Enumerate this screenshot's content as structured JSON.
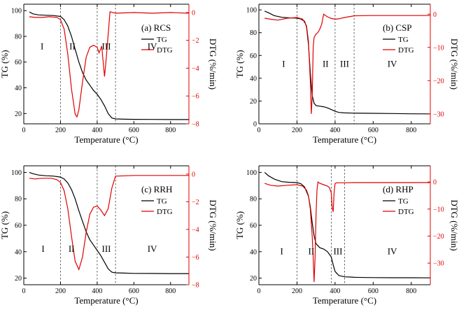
{
  "chart_data": [
    {
      "type": "line",
      "panel_label": "(a) RCS",
      "xlabel": "Temperature (°C)",
      "ylabel_left": "TG (%)",
      "ylabel_right": "DTG (%/min)",
      "xlim": [
        0,
        900
      ],
      "ylim_left": [
        12,
        105
      ],
      "ylim_right": [
        -8,
        0.6
      ],
      "xticks": [
        0,
        200,
        400,
        600,
        800
      ],
      "yticks_left": [
        20,
        40,
        60,
        80,
        100
      ],
      "yticks_right": [
        0,
        -2,
        -4,
        -6,
        -8
      ],
      "stage_lines": [
        200,
        400,
        500
      ],
      "stages": [
        {
          "label": "I",
          "x": 100
        },
        {
          "label": "II",
          "x": 265
        },
        {
          "label": "III",
          "x": 450
        },
        {
          "label": "IV",
          "x": 700
        }
      ],
      "legend_position": "right-middle",
      "stage_label_level": 70,
      "series": [
        {
          "name": "TG",
          "axis": "left",
          "color": "#000000",
          "x": [
            30,
            50,
            80,
            120,
            160,
            200,
            220,
            240,
            260,
            280,
            300,
            320,
            340,
            360,
            380,
            400,
            420,
            440,
            460,
            480,
            500,
            550,
            600,
            700,
            800,
            900
          ],
          "y": [
            99,
            97.5,
            96.7,
            96.4,
            96.2,
            95.5,
            93,
            88,
            80,
            70,
            60,
            52,
            46,
            42,
            38,
            35,
            31,
            26,
            20,
            16.5,
            15.8,
            15.6,
            15.5,
            15.4,
            15.3,
            15.3
          ]
        },
        {
          "name": "DTG",
          "axis": "right",
          "color": "#e00000",
          "x": [
            30,
            60,
            100,
            140,
            180,
            200,
            220,
            240,
            260,
            280,
            290,
            300,
            320,
            340,
            360,
            380,
            400,
            410,
            420,
            425,
            430,
            440,
            450,
            470,
            500,
            600,
            700,
            800,
            900
          ],
          "y": [
            -0.3,
            -0.35,
            -0.35,
            -0.3,
            -0.35,
            -0.5,
            -1.2,
            -3,
            -5.5,
            -7.3,
            -7.5,
            -7.0,
            -5,
            -3.2,
            -2.5,
            -2.35,
            -2.5,
            -2.9,
            -2.6,
            -2.4,
            -3.2,
            -4.6,
            -3.2,
            0.05,
            -0.05,
            0.0,
            -0.05,
            0.0,
            -0.05
          ]
        }
      ]
    },
    {
      "type": "line",
      "panel_label": "(b) CSP",
      "xlabel": "Temperature (°C)",
      "ylabel_left": "TG (%)",
      "ylabel_right": "DTG (%/min)",
      "xlim": [
        0,
        900
      ],
      "ylim_left": [
        0,
        105
      ],
      "ylim_right": [
        -33,
        3
      ],
      "xticks": [
        0,
        200,
        400,
        600,
        800
      ],
      "yticks_left": [
        0,
        20,
        40,
        60,
        80,
        100
      ],
      "yticks_right": [
        0,
        -10,
        -20,
        -30
      ],
      "stage_lines": [
        200,
        400,
        500
      ],
      "stages": [
        {
          "label": "I",
          "x": 130
        },
        {
          "label": "II",
          "x": 350
        },
        {
          "label": "III",
          "x": 450
        },
        {
          "label": "IV",
          "x": 700
        }
      ],
      "legend_position": "right-middle",
      "stage_label_level": 50,
      "series": [
        {
          "name": "TG",
          "axis": "left",
          "color": "#000000",
          "x": [
            30,
            50,
            80,
            120,
            160,
            200,
            220,
            240,
            250,
            260,
            270,
            280,
            290,
            300,
            320,
            340,
            360,
            380,
            400,
            420,
            450,
            500,
            600,
            700,
            800,
            900
          ],
          "y": [
            99,
            97.5,
            95,
            93.5,
            93,
            92.8,
            92,
            90,
            85,
            70,
            45,
            25,
            18,
            16,
            15.5,
            15,
            14,
            12.5,
            11,
            10,
            9.6,
            9.4,
            9.2,
            9.0,
            8.8,
            8.7
          ]
        },
        {
          "name": "DTG",
          "axis": "right",
          "color": "#e00000",
          "x": [
            30,
            60,
            100,
            150,
            200,
            230,
            250,
            260,
            270,
            275,
            280,
            285,
            290,
            300,
            310,
            320,
            330,
            340,
            350,
            360,
            380,
            400,
            420,
            450,
            500,
            600,
            700,
            800,
            900
          ],
          "y": [
            -1.2,
            -1.5,
            -1.8,
            -1.2,
            -1.0,
            -1.5,
            -3.5,
            -8,
            -20,
            -30,
            -25,
            -10,
            -7,
            -6,
            -5.5,
            -4.5,
            -3,
            0,
            -0.4,
            -0.8,
            -1.3,
            -1.5,
            -1.4,
            -1.0,
            -0.5,
            -0.4,
            -0.4,
            -0.4,
            -0.4
          ]
        }
      ]
    },
    {
      "type": "line",
      "panel_label": "(c) RRH",
      "xlabel": "Temperature (°C)",
      "ylabel_left": "TG (%)",
      "ylabel_right": "DTG (%/min)",
      "xlim": [
        0,
        900
      ],
      "ylim_left": [
        15,
        105
      ],
      "ylim_right": [
        -8,
        0.6
      ],
      "xticks": [
        0,
        200,
        400,
        600,
        800
      ],
      "yticks_left": [
        20,
        40,
        60,
        80,
        100
      ],
      "yticks_right": [
        0,
        -2,
        -4,
        -6,
        -8
      ],
      "stage_lines": [
        200,
        400,
        500
      ],
      "stages": [
        {
          "label": "I",
          "x": 105
        },
        {
          "label": "II",
          "x": 260
        },
        {
          "label": "III",
          "x": 450
        },
        {
          "label": "IV",
          "x": 700
        }
      ],
      "legend_position": "right-middle",
      "stage_label_level": 40,
      "series": [
        {
          "name": "TG",
          "axis": "left",
          "color": "#000000",
          "x": [
            30,
            50,
            80,
            120,
            160,
            200,
            220,
            240,
            260,
            280,
            300,
            320,
            340,
            360,
            380,
            400,
            420,
            440,
            460,
            480,
            500,
            550,
            600,
            700,
            800,
            900
          ],
          "y": [
            100,
            99,
            98,
            97.5,
            97.2,
            96.5,
            95,
            92,
            87,
            80,
            71,
            63,
            55,
            49,
            45,
            41,
            37,
            32,
            27,
            24.5,
            24,
            23.8,
            23.6,
            23.5,
            23.4,
            23.4
          ]
        },
        {
          "name": "DTG",
          "axis": "right",
          "color": "#e00000",
          "x": [
            30,
            60,
            100,
            150,
            180,
            200,
            220,
            240,
            260,
            280,
            300,
            320,
            340,
            360,
            380,
            400,
            420,
            440,
            460,
            480,
            500,
            600,
            700,
            800,
            900
          ],
          "y": [
            -0.3,
            -0.35,
            -0.3,
            -0.3,
            -0.4,
            -0.6,
            -1.2,
            -2.5,
            -4.5,
            -6.3,
            -6.9,
            -6.0,
            -4.2,
            -2.9,
            -2.4,
            -2.3,
            -2.6,
            -3.0,
            -2.5,
            -1.0,
            -0.15,
            -0.1,
            -0.1,
            -0.1,
            -0.1
          ]
        }
      ]
    },
    {
      "type": "line",
      "panel_label": "(d) RHP",
      "xlabel": "Temperature (°C)",
      "ylabel_left": "TG (%)",
      "ylabel_right": "DTG (%/min)",
      "xlim": [
        0,
        900
      ],
      "ylim_left": [
        15,
        105
      ],
      "ylim_right": [
        -38,
        6
      ],
      "xticks": [
        0,
        200,
        400,
        600,
        800
      ],
      "yticks_left": [
        20,
        40,
        60,
        80,
        100
      ],
      "yticks_right": [
        0,
        -10,
        -20,
        -30
      ],
      "stage_lines": [
        200,
        380,
        450
      ],
      "stages": [
        {
          "label": "I",
          "x": 120
        },
        {
          "label": "II",
          "x": 275
        },
        {
          "label": "III",
          "x": 415
        },
        {
          "label": "IV",
          "x": 700
        }
      ],
      "legend_position": "right-middle",
      "stage_label_level": 38,
      "series": [
        {
          "name": "TG",
          "axis": "left",
          "color": "#000000",
          "x": [
            30,
            50,
            80,
            120,
            160,
            200,
            220,
            240,
            260,
            270,
            280,
            290,
            300,
            320,
            340,
            360,
            380,
            390,
            400,
            420,
            450,
            480,
            500,
            600,
            700,
            800,
            900
          ],
          "y": [
            100,
            97.5,
            95,
            93,
            92.5,
            92.3,
            91.5,
            89,
            82,
            74,
            62,
            52,
            46,
            43,
            42,
            40,
            36,
            30,
            25,
            22,
            21,
            20.8,
            20.6,
            20.4,
            20.3,
            20.3,
            20.2
          ]
        },
        {
          "name": "DTG",
          "axis": "right",
          "color": "#e00000",
          "x": [
            30,
            60,
            100,
            150,
            200,
            230,
            250,
            260,
            270,
            280,
            285,
            290,
            295,
            300,
            305,
            310,
            320,
            340,
            360,
            370,
            380,
            385,
            390,
            395,
            400,
            410,
            450,
            500,
            600,
            700,
            800,
            900
          ],
          "y": [
            -0.5,
            -1.2,
            -1.5,
            -1.2,
            -1.0,
            -1.5,
            -3,
            -5,
            -10,
            -20,
            -28,
            -37,
            -28,
            -12,
            -3,
            0,
            -0.5,
            -1.0,
            -1.5,
            -2.0,
            -4,
            -9.5,
            -11,
            -4,
            -0.5,
            -0.3,
            -0.3,
            -0.2,
            -0.2,
            -0.2,
            -0.2,
            -0.2
          ]
        }
      ]
    }
  ]
}
